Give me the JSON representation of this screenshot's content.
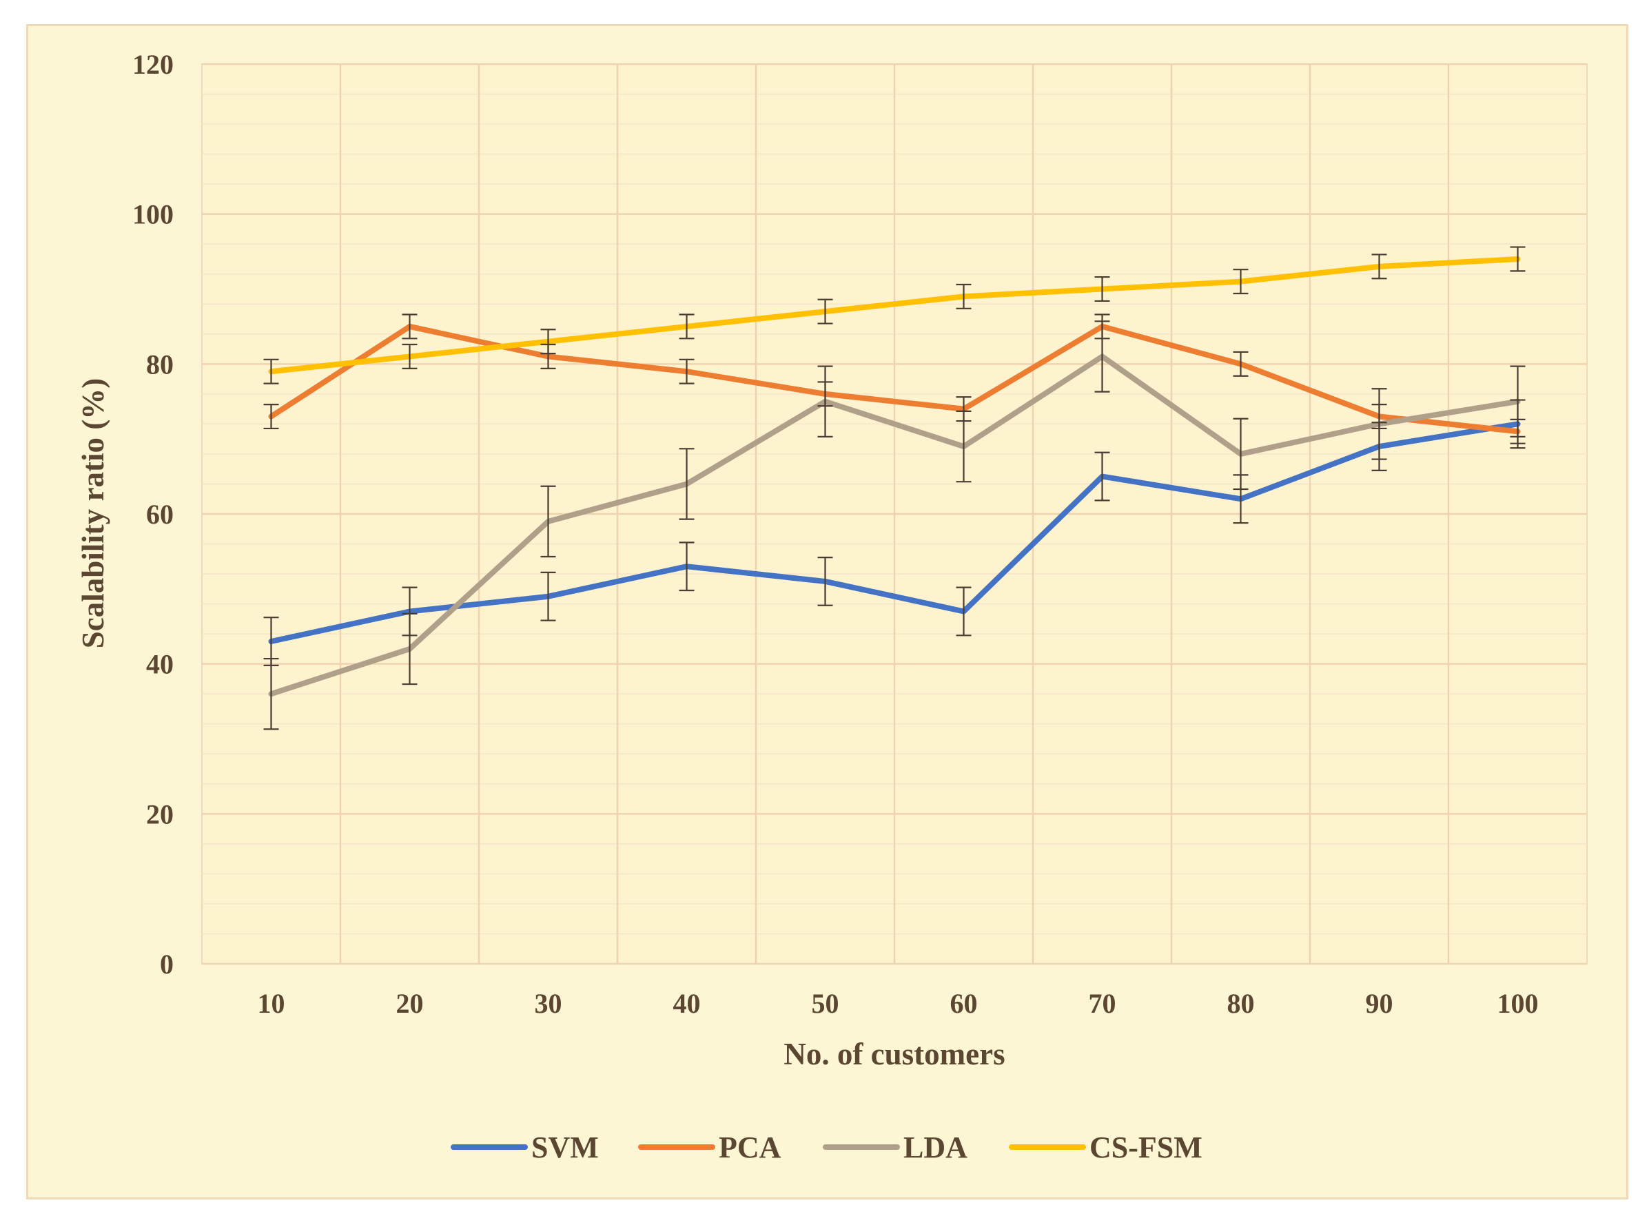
{
  "chart_data": {
    "type": "line",
    "title": "",
    "xlabel": "No. of customers",
    "ylabel": "Scalability ratio (%)",
    "categories": [
      "10",
      "20",
      "30",
      "40",
      "50",
      "60",
      "70",
      "80",
      "90",
      "100"
    ],
    "ylim": [
      0,
      120
    ],
    "yticks": [
      "0",
      "20",
      "40",
      "60",
      "80",
      "100",
      "120"
    ],
    "grid": true,
    "legend_position": "bottom",
    "error_bars": true,
    "series": [
      {
        "name": "SVM",
        "color": "#4472c4",
        "values": [
          43,
          47,
          49,
          53,
          51,
          47,
          65,
          62,
          69,
          72
        ],
        "errors": [
          3.2,
          3.2,
          3.2,
          3.2,
          3.2,
          3.2,
          3.2,
          3.2,
          3.2,
          3.2
        ]
      },
      {
        "name": "PCA",
        "color": "#ed7d31",
        "values": [
          73,
          85,
          81,
          79,
          76,
          74,
          85,
          80,
          73,
          71
        ],
        "errors": [
          1.6,
          1.6,
          1.6,
          1.6,
          1.6,
          1.6,
          1.6,
          1.6,
          1.6,
          1.6
        ]
      },
      {
        "name": "LDA",
        "color": "#b0a08a",
        "values": [
          36,
          42,
          59,
          64,
          75,
          69,
          81,
          68,
          72,
          75
        ],
        "errors": [
          4.7,
          4.7,
          4.7,
          4.7,
          4.7,
          4.7,
          4.7,
          4.7,
          4.7,
          4.7
        ]
      },
      {
        "name": "CS-FSM",
        "color": "#ffc000",
        "values": [
          79,
          81,
          83,
          85,
          87,
          89,
          90,
          91,
          93,
          94
        ],
        "errors": [
          1.6,
          1.6,
          1.6,
          1.6,
          1.6,
          1.6,
          1.6,
          1.6,
          1.6,
          1.6
        ]
      }
    ]
  }
}
